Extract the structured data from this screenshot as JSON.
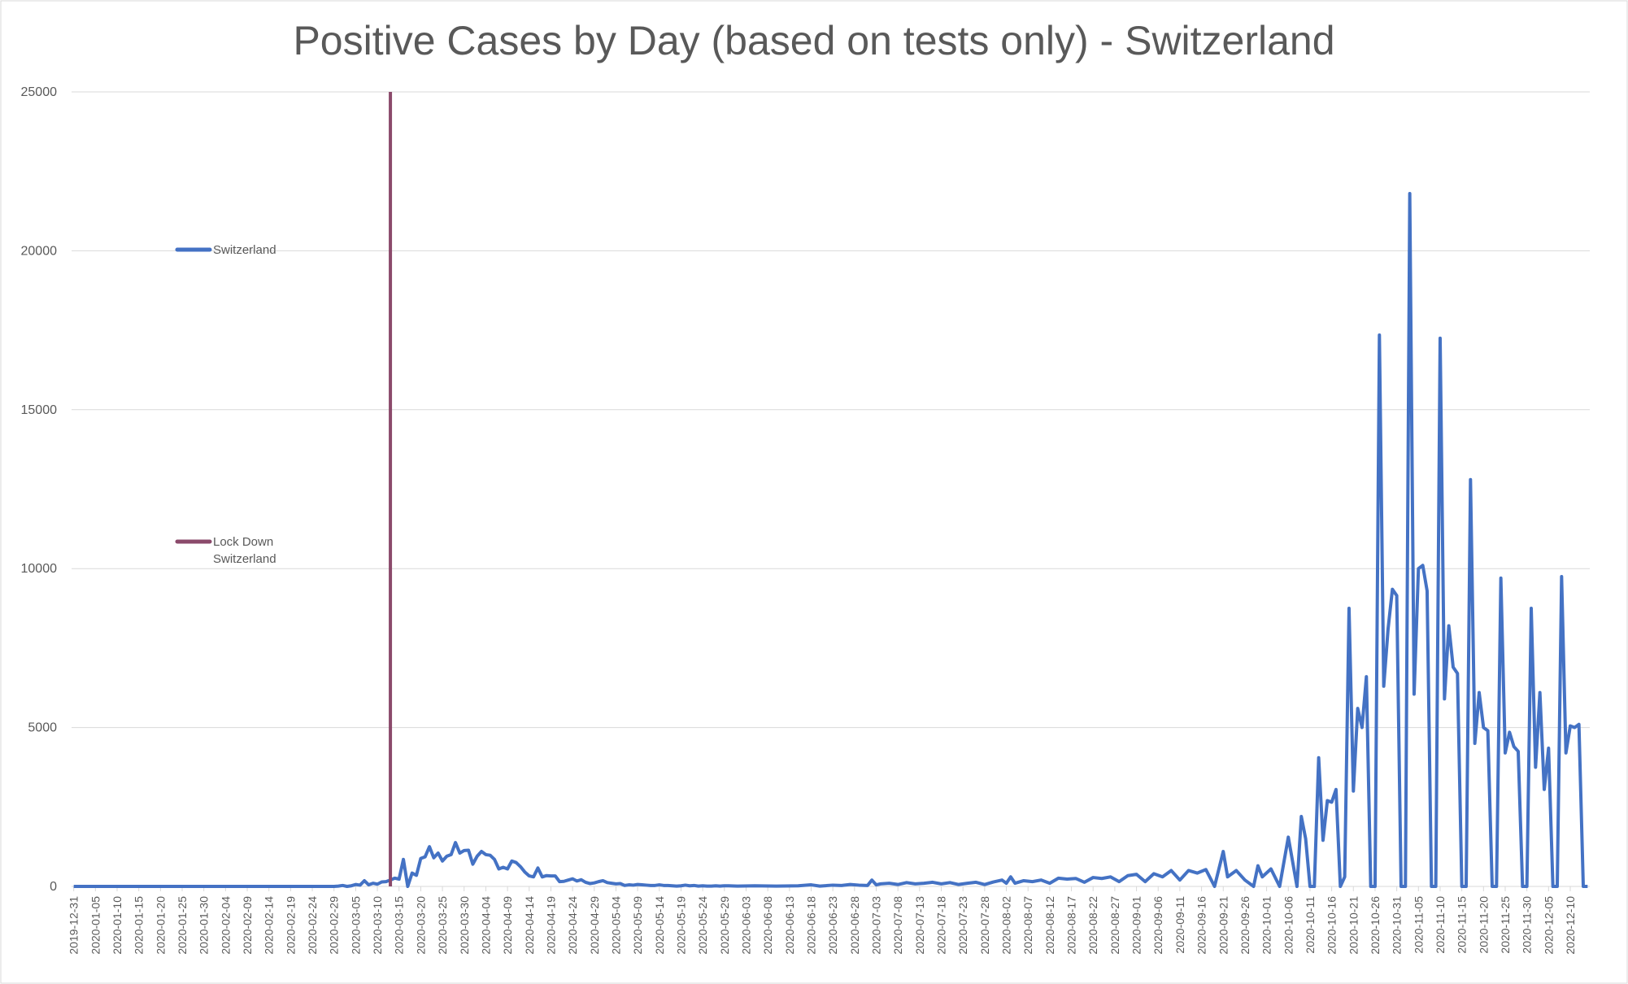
{
  "chart_data": {
    "type": "line",
    "title": "Positive Cases by Day (based on tests only) - Switzerland",
    "xlabel": "",
    "ylabel": "",
    "ylim": [
      0,
      25000
    ],
    "yticks": [
      0,
      5000,
      10000,
      15000,
      20000,
      25000
    ],
    "start_date": "2019-12-31",
    "xtick_step_days": 5,
    "xticks": [
      "2019-12-31",
      "2020-01-05",
      "2020-01-10",
      "2020-01-15",
      "2020-01-20",
      "2020-01-25",
      "2020-01-30",
      "2020-02-04",
      "2020-02-09",
      "2020-02-14",
      "2020-02-19",
      "2020-02-24",
      "2020-02-29",
      "2020-03-05",
      "2020-03-10",
      "2020-03-15",
      "2020-03-20",
      "2020-03-25",
      "2020-03-30",
      "2020-04-04",
      "2020-04-09",
      "2020-04-14",
      "2020-04-19",
      "2020-04-24",
      "2020-04-29",
      "2020-05-04",
      "2020-05-09",
      "2020-05-14",
      "2020-05-19",
      "2020-05-24",
      "2020-05-29",
      "2020-06-03",
      "2020-06-08",
      "2020-06-13",
      "2020-06-18",
      "2020-06-23",
      "2020-06-28",
      "2020-07-03",
      "2020-07-08",
      "2020-07-13",
      "2020-07-18",
      "2020-07-23",
      "2020-07-28",
      "2020-08-02",
      "2020-08-07",
      "2020-08-12",
      "2020-08-17",
      "2020-08-22",
      "2020-08-27",
      "2020-09-01",
      "2020-09-06",
      "2020-09-11",
      "2020-09-16",
      "2020-09-21",
      "2020-09-26",
      "2020-10-01",
      "2020-10-06",
      "2020-10-11",
      "2020-10-16",
      "2020-10-21",
      "2020-10-26",
      "2020-10-31",
      "2020-11-05",
      "2020-11-10",
      "2020-11-15",
      "2020-11-20",
      "2020-11-25",
      "2020-11-30",
      "2020-12-05",
      "2020-12-10"
    ],
    "grid": true,
    "legend_position": "upper-left",
    "series": [
      {
        "name": "Switzerland",
        "color": "#4472C4",
        "points": [
          [
            "2019-12-31",
            0
          ],
          [
            "2020-02-25",
            0
          ],
          [
            "2020-02-29",
            0
          ],
          [
            "2020-03-01",
            10
          ],
          [
            "2020-03-02",
            30
          ],
          [
            "2020-03-03",
            0
          ],
          [
            "2020-03-04",
            20
          ],
          [
            "2020-03-05",
            60
          ],
          [
            "2020-03-06",
            40
          ],
          [
            "2020-03-07",
            180
          ],
          [
            "2020-03-08",
            50
          ],
          [
            "2020-03-09",
            100
          ],
          [
            "2020-03-10",
            70
          ],
          [
            "2020-03-11",
            140
          ],
          [
            "2020-03-12",
            150
          ],
          [
            "2020-03-13",
            200
          ],
          [
            "2020-03-14",
            260
          ],
          [
            "2020-03-15",
            230
          ],
          [
            "2020-03-16",
            850
          ],
          [
            "2020-03-17",
            0
          ],
          [
            "2020-03-18",
            420
          ],
          [
            "2020-03-19",
            350
          ],
          [
            "2020-03-20",
            880
          ],
          [
            "2020-03-21",
            930
          ],
          [
            "2020-03-22",
            1250
          ],
          [
            "2020-03-23",
            900
          ],
          [
            "2020-03-24",
            1050
          ],
          [
            "2020-03-25",
            800
          ],
          [
            "2020-03-26",
            950
          ],
          [
            "2020-03-27",
            1000
          ],
          [
            "2020-03-28",
            1380
          ],
          [
            "2020-03-29",
            1050
          ],
          [
            "2020-03-30",
            1130
          ],
          [
            "2020-03-31",
            1140
          ],
          [
            "2020-04-01",
            700
          ],
          [
            "2020-04-02",
            950
          ],
          [
            "2020-04-03",
            1100
          ],
          [
            "2020-04-04",
            1000
          ],
          [
            "2020-04-05",
            980
          ],
          [
            "2020-04-06",
            850
          ],
          [
            "2020-04-07",
            550
          ],
          [
            "2020-04-08",
            600
          ],
          [
            "2020-04-09",
            550
          ],
          [
            "2020-04-10",
            800
          ],
          [
            "2020-04-11",
            750
          ],
          [
            "2020-04-12",
            620
          ],
          [
            "2020-04-13",
            450
          ],
          [
            "2020-04-14",
            330
          ],
          [
            "2020-04-15",
            300
          ],
          [
            "2020-04-16",
            580
          ],
          [
            "2020-04-17",
            300
          ],
          [
            "2020-04-18",
            340
          ],
          [
            "2020-04-19",
            330
          ],
          [
            "2020-04-20",
            330
          ],
          [
            "2020-04-21",
            150
          ],
          [
            "2020-04-22",
            160
          ],
          [
            "2020-04-23",
            200
          ],
          [
            "2020-04-24",
            240
          ],
          [
            "2020-04-25",
            170
          ],
          [
            "2020-04-26",
            210
          ],
          [
            "2020-04-27",
            130
          ],
          [
            "2020-04-28",
            90
          ],
          [
            "2020-04-29",
            110
          ],
          [
            "2020-04-30",
            150
          ],
          [
            "2020-05-01",
            180
          ],
          [
            "2020-05-02",
            120
          ],
          [
            "2020-05-03",
            100
          ],
          [
            "2020-05-04",
            80
          ],
          [
            "2020-05-05",
            90
          ],
          [
            "2020-05-06",
            30
          ],
          [
            "2020-05-07",
            50
          ],
          [
            "2020-05-08",
            40
          ],
          [
            "2020-05-09",
            60
          ],
          [
            "2020-05-10",
            50
          ],
          [
            "2020-05-11",
            40
          ],
          [
            "2020-05-12",
            30
          ],
          [
            "2020-05-13",
            30
          ],
          [
            "2020-05-14",
            50
          ],
          [
            "2020-05-15",
            30
          ],
          [
            "2020-05-16",
            30
          ],
          [
            "2020-05-17",
            20
          ],
          [
            "2020-05-18",
            10
          ],
          [
            "2020-05-19",
            20
          ],
          [
            "2020-05-20",
            40
          ],
          [
            "2020-05-21",
            20
          ],
          [
            "2020-05-22",
            30
          ],
          [
            "2020-05-23",
            10
          ],
          [
            "2020-05-24",
            20
          ],
          [
            "2020-05-25",
            10
          ],
          [
            "2020-05-26",
            10
          ],
          [
            "2020-05-27",
            20
          ],
          [
            "2020-05-28",
            10
          ],
          [
            "2020-05-29",
            20
          ],
          [
            "2020-05-30",
            20
          ],
          [
            "2020-06-01",
            10
          ],
          [
            "2020-06-05",
            20
          ],
          [
            "2020-06-10",
            10
          ],
          [
            "2020-06-15",
            20
          ],
          [
            "2020-06-18",
            50
          ],
          [
            "2020-06-20",
            10
          ],
          [
            "2020-06-23",
            40
          ],
          [
            "2020-06-25",
            30
          ],
          [
            "2020-06-27",
            60
          ],
          [
            "2020-06-29",
            40
          ],
          [
            "2020-07-01",
            30
          ],
          [
            "2020-07-02",
            200
          ],
          [
            "2020-07-03",
            50
          ],
          [
            "2020-07-04",
            80
          ],
          [
            "2020-07-06",
            100
          ],
          [
            "2020-07-08",
            60
          ],
          [
            "2020-07-10",
            120
          ],
          [
            "2020-07-12",
            80
          ],
          [
            "2020-07-14",
            100
          ],
          [
            "2020-07-16",
            130
          ],
          [
            "2020-07-18",
            80
          ],
          [
            "2020-07-20",
            120
          ],
          [
            "2020-07-22",
            60
          ],
          [
            "2020-07-24",
            100
          ],
          [
            "2020-07-26",
            130
          ],
          [
            "2020-07-28",
            60
          ],
          [
            "2020-07-30",
            140
          ],
          [
            "2020-08-01",
            200
          ],
          [
            "2020-08-02",
            100
          ],
          [
            "2020-08-03",
            300
          ],
          [
            "2020-08-04",
            100
          ],
          [
            "2020-08-06",
            180
          ],
          [
            "2020-08-08",
            150
          ],
          [
            "2020-08-10",
            200
          ],
          [
            "2020-08-12",
            100
          ],
          [
            "2020-08-14",
            260
          ],
          [
            "2020-08-16",
            230
          ],
          [
            "2020-08-18",
            250
          ],
          [
            "2020-08-20",
            130
          ],
          [
            "2020-08-22",
            280
          ],
          [
            "2020-08-24",
            250
          ],
          [
            "2020-08-26",
            300
          ],
          [
            "2020-08-28",
            150
          ],
          [
            "2020-08-30",
            340
          ],
          [
            "2020-09-01",
            380
          ],
          [
            "2020-09-03",
            150
          ],
          [
            "2020-09-05",
            400
          ],
          [
            "2020-09-07",
            300
          ],
          [
            "2020-09-09",
            500
          ],
          [
            "2020-09-11",
            200
          ],
          [
            "2020-09-13",
            500
          ],
          [
            "2020-09-15",
            420
          ],
          [
            "2020-09-17",
            530
          ],
          [
            "2020-09-19",
            0
          ],
          [
            "2020-09-21",
            1100
          ],
          [
            "2020-09-22",
            300
          ],
          [
            "2020-09-24",
            500
          ],
          [
            "2020-09-26",
            200
          ],
          [
            "2020-09-28",
            0
          ],
          [
            "2020-09-29",
            650
          ],
          [
            "2020-09-30",
            300
          ],
          [
            "2020-10-02",
            550
          ],
          [
            "2020-10-04",
            0
          ],
          [
            "2020-10-06",
            1550
          ],
          [
            "2020-10-08",
            0
          ],
          [
            "2020-10-09",
            2200
          ],
          [
            "2020-10-10",
            1500
          ],
          [
            "2020-10-11",
            0
          ],
          [
            "2020-10-12",
            0
          ],
          [
            "2020-10-13",
            4050
          ],
          [
            "2020-10-14",
            1450
          ],
          [
            "2020-10-15",
            2700
          ],
          [
            "2020-10-16",
            2650
          ],
          [
            "2020-10-17",
            3050
          ],
          [
            "2020-10-18",
            0
          ],
          [
            "2020-10-19",
            300
          ],
          [
            "2020-10-20",
            8750
          ],
          [
            "2020-10-21",
            3000
          ],
          [
            "2020-10-22",
            5600
          ],
          [
            "2020-10-23",
            5000
          ],
          [
            "2020-10-24",
            6600
          ],
          [
            "2020-10-25",
            0
          ],
          [
            "2020-10-26",
            0
          ],
          [
            "2020-10-27",
            17350
          ],
          [
            "2020-10-28",
            6300
          ],
          [
            "2020-10-29",
            8100
          ],
          [
            "2020-10-30",
            9350
          ],
          [
            "2020-10-31",
            9150
          ],
          [
            "2020-11-01",
            0
          ],
          [
            "2020-11-02",
            0
          ],
          [
            "2020-11-03",
            21800
          ],
          [
            "2020-11-04",
            6050
          ],
          [
            "2020-11-05",
            10000
          ],
          [
            "2020-11-06",
            10100
          ],
          [
            "2020-11-07",
            9300
          ],
          [
            "2020-11-08",
            0
          ],
          [
            "2020-11-09",
            0
          ],
          [
            "2020-11-10",
            17250
          ],
          [
            "2020-11-11",
            5900
          ],
          [
            "2020-11-12",
            8200
          ],
          [
            "2020-11-13",
            6900
          ],
          [
            "2020-11-14",
            6700
          ],
          [
            "2020-11-15",
            0
          ],
          [
            "2020-11-16",
            0
          ],
          [
            "2020-11-17",
            12800
          ],
          [
            "2020-11-18",
            4500
          ],
          [
            "2020-11-19",
            6100
          ],
          [
            "2020-11-20",
            5000
          ],
          [
            "2020-11-21",
            4900
          ],
          [
            "2020-11-22",
            0
          ],
          [
            "2020-11-23",
            0
          ],
          [
            "2020-11-24",
            9700
          ],
          [
            "2020-11-25",
            4200
          ],
          [
            "2020-11-26",
            4850
          ],
          [
            "2020-11-27",
            4400
          ],
          [
            "2020-11-28",
            4250
          ],
          [
            "2020-11-29",
            0
          ],
          [
            "2020-11-30",
            0
          ],
          [
            "2020-12-01",
            8750
          ],
          [
            "2020-12-02",
            3750
          ],
          [
            "2020-12-03",
            6100
          ],
          [
            "2020-12-04",
            3050
          ],
          [
            "2020-12-05",
            4350
          ],
          [
            "2020-12-06",
            0
          ],
          [
            "2020-12-07",
            0
          ],
          [
            "2020-12-08",
            9750
          ],
          [
            "2020-12-09",
            4200
          ],
          [
            "2020-12-10",
            5050
          ],
          [
            "2020-12-11",
            5000
          ],
          [
            "2020-12-12",
            5100
          ],
          [
            "2020-12-13",
            0
          ],
          [
            "2020-12-14",
            0
          ]
        ]
      },
      {
        "name": "Lock Down Switzerland",
        "color": "#8B4A6B",
        "vertical_marker": "2020-03-13"
      }
    ],
    "legend": [
      {
        "label": "Switzerland",
        "color": "#4472C4"
      },
      {
        "label": "Lock Down",
        "label_line2": "Switzerland",
        "color": "#8B4A6B"
      }
    ]
  }
}
